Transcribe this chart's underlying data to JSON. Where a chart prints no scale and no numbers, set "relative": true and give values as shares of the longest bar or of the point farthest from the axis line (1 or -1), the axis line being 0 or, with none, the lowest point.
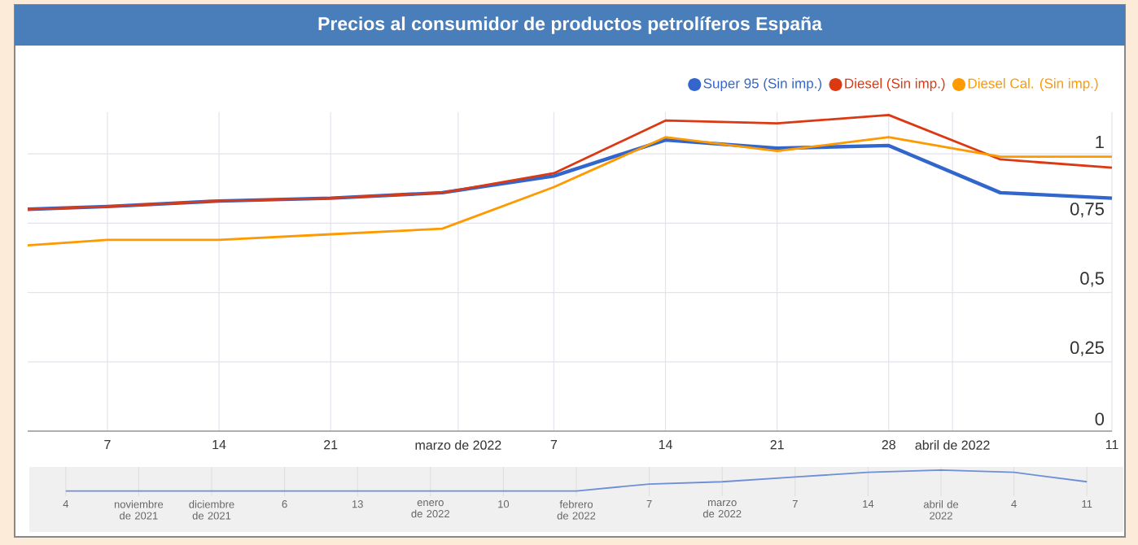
{
  "chart_data": [
    {
      "type": "line",
      "title": "Precios al consumidor de productos petrolíferos España",
      "x": [
        "2022-02-02",
        "2022-02-07",
        "2022-02-14",
        "2022-02-21",
        "2022-02-28",
        "2022-03-07",
        "2022-03-14",
        "2022-03-21",
        "2022-03-28",
        "2022-04-04",
        "2022-04-11"
      ],
      "series": [
        {
          "name": "Super 95 (Sin imp.)",
          "color": "#3366cc",
          "values": [
            0.8,
            0.81,
            0.83,
            0.84,
            0.86,
            0.92,
            1.05,
            1.02,
            1.03,
            0.86,
            0.84
          ]
        },
        {
          "name": "Diesel (Sin imp.)",
          "color": "#dc3912",
          "values": [
            0.8,
            0.81,
            0.83,
            0.84,
            0.86,
            0.93,
            1.12,
            1.11,
            1.14,
            0.98,
            0.95
          ]
        },
        {
          "name": "Diesel Cal. (Sin imp.)",
          "color": "#ff9900",
          "values": [
            0.67,
            0.69,
            0.69,
            0.71,
            0.73,
            0.88,
            1.06,
            1.01,
            1.06,
            0.99,
            0.99
          ]
        }
      ],
      "xlim": [
        "2022-02-02",
        "2022-04-11"
      ],
      "xticks": [
        {
          "value": "2022-02-07",
          "label": "7"
        },
        {
          "value": "2022-02-14",
          "label": "14"
        },
        {
          "value": "2022-02-21",
          "label": "21"
        },
        {
          "value": "2022-03-01",
          "label": "marzo de 2022"
        },
        {
          "value": "2022-03-07",
          "label": "7"
        },
        {
          "value": "2022-03-14",
          "label": "14"
        },
        {
          "value": "2022-03-21",
          "label": "21"
        },
        {
          "value": "2022-03-28",
          "label": "28"
        },
        {
          "value": "2022-04-01",
          "label": "abril de 2022"
        },
        {
          "value": "2022-04-11",
          "label": "11"
        }
      ],
      "ylim": [
        0,
        1.15
      ],
      "yticks": [
        0,
        {
          "value": 0.25,
          "label": "0,25"
        },
        {
          "value": 0.5,
          "label": "0,5"
        },
        {
          "value": 0.75,
          "label": "0,75"
        },
        1
      ],
      "grid": true,
      "legend": "top right"
    },
    {
      "type": "line",
      "relative": true,
      "tick_labels": "x",
      "grid": "x",
      "categories": [
        "4",
        "noviembre de 2021",
        "diciembre de 2021",
        "6",
        "13",
        "enero de 2022",
        "10",
        "febrero de 2022",
        "7",
        "marzo de 2022",
        "7",
        "14",
        "abril de 2022",
        "4",
        "11"
      ],
      "series": [
        {
          "color": "#6d8fd8",
          "values": [
            0,
            0,
            0,
            0,
            0,
            0,
            0,
            0,
            0.33,
            0.44,
            0.67,
            0.89,
            1,
            0.89,
            0.44
          ]
        }
      ]
    }
  ]
}
